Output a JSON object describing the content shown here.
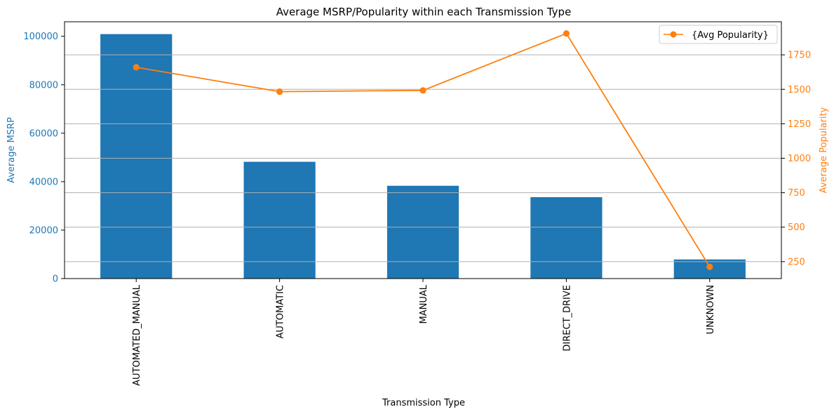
{
  "chart_data": {
    "type": "bar",
    "title": "Average MSRP/Popularity within each Transmission Type",
    "xlabel": "Transmission Type",
    "categories": [
      "AUTOMATED_MANUAL",
      "AUTOMATIC",
      "MANUAL",
      "DIRECT_DRIVE",
      "UNKNOWN"
    ],
    "series": [
      {
        "name": "",
        "kind": "bar",
        "axis": "left",
        "color": "#1f77b4",
        "values": [
          100900,
          48200,
          38300,
          33600,
          7900
        ]
      },
      {
        "name": "{Avg Popularity}",
        "kind": "line",
        "axis": "right",
        "color": "#ff7f0e",
        "marker": "circle",
        "values": [
          1660,
          1483,
          1492,
          1905,
          212
        ]
      }
    ],
    "y_left": {
      "label": "Average MSRP",
      "ylim": [
        0,
        106000
      ],
      "ticks": [
        0,
        20000,
        40000,
        60000,
        80000,
        100000
      ],
      "color": "#1f77b4"
    },
    "y_right": {
      "label": "Average Popularity",
      "ylim": [
        127,
        1990
      ],
      "ticks": [
        250,
        500,
        750,
        1000,
        1250,
        1500,
        1750
      ],
      "color": "#ff7f0e"
    },
    "grid": "horizontal (right axis)",
    "legend": "top-right"
  }
}
